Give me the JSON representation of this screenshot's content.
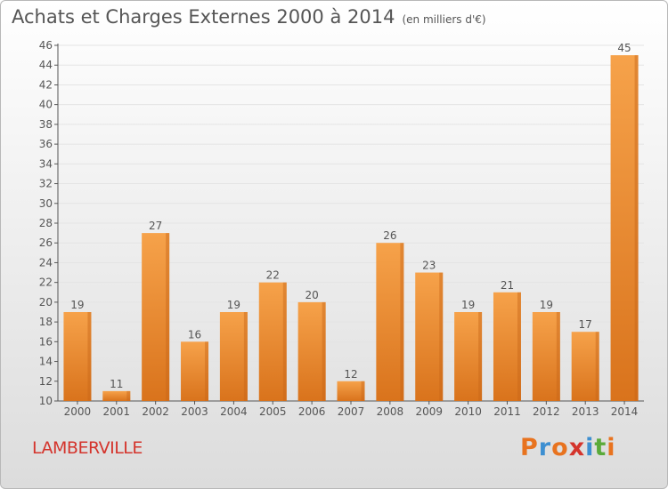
{
  "header": {
    "title": "Achats et Charges Externes 2000 à 2014",
    "subtitle": "(en milliers d'€)"
  },
  "footer": {
    "commune": "LAMBERVILLE",
    "logo": "Proxiti",
    "logo_colors": [
      "#e8731f",
      "#3d8fd1",
      "#e8731f",
      "#d4342c",
      "#3d8fd1",
      "#5aaa3a",
      "#e8731f"
    ]
  },
  "chart_data": {
    "type": "bar",
    "title": "Achats et Charges Externes 2000 à 2014",
    "subtitle": "(en milliers d'€)",
    "categories": [
      "2000",
      "2001",
      "2002",
      "2003",
      "2004",
      "2005",
      "2006",
      "2007",
      "2008",
      "2009",
      "2010",
      "2011",
      "2012",
      "2013",
      "2014"
    ],
    "values": [
      19,
      11,
      27,
      16,
      19,
      22,
      20,
      12,
      26,
      23,
      19,
      21,
      19,
      17,
      45
    ],
    "ylim": [
      10,
      46
    ],
    "yticks": [
      10,
      12,
      14,
      16,
      18,
      20,
      22,
      24,
      26,
      28,
      30,
      32,
      34,
      36,
      38,
      40,
      42,
      44,
      46
    ],
    "grid": true,
    "bar_color": "#f29a3e",
    "bar_color_dark": "#d9731c",
    "xlabel": "",
    "ylabel": ""
  }
}
